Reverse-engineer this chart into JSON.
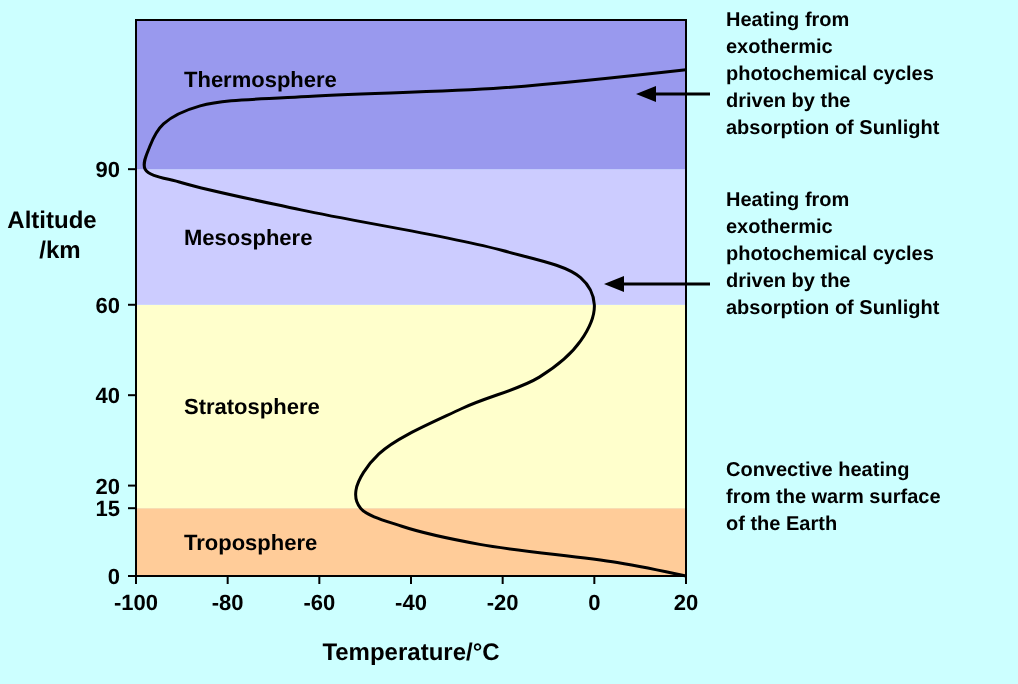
{
  "chart_data": {
    "type": "line",
    "xlabel": "Temperature/°C",
    "ylabel": "Altitude /km",
    "x": [
      20,
      5,
      -25,
      -42,
      -51,
      -52,
      -47,
      -29,
      -12,
      -3,
      0,
      -3,
      -20,
      -64,
      -90,
      -98,
      -97,
      -94,
      -86,
      -64,
      -20,
      20
    ],
    "series": [
      {
        "color": "#000000",
        "values": [
          0,
          3,
          7,
          11,
          15,
          19,
          27,
          37,
          44,
          52,
          60,
          66,
          72,
          81,
          87,
          90,
          95,
          100,
          104,
          106,
          108,
          112
        ]
      }
    ],
    "xlim": [
      -100,
      20
    ],
    "ylim": [
      0,
      123
    ],
    "xticks": [
      -100,
      -80,
      -60,
      -40,
      -20,
      0,
      20
    ],
    "yticks": [
      0,
      15,
      20,
      40,
      60,
      90
    ],
    "bands": [
      {
        "axis": "y",
        "from": 0,
        "to": 15,
        "label": "Troposphere",
        "color": "#ffcc99"
      },
      {
        "axis": "y",
        "from": 15,
        "to": 60,
        "label": "Stratosphere",
        "color": "#ffffcc"
      },
      {
        "axis": "y",
        "from": 60,
        "to": 90,
        "label": "Mesosphere",
        "color": "#ccccff"
      },
      {
        "axis": "y",
        "from": 90,
        "to": 123,
        "label": "Thermosphere",
        "color": "#9999ee"
      }
    ],
    "annotations": [
      "Heating from\nexothermic\nphotochemical cycles\ndriven by the\nabsorption of Sunlight",
      "Heating from\nexothermic\nphotochemical cycles\ndriven by the\nabsorption of Sunlight",
      "Convective heating\nfrom the warm surface\nof the Earth"
    ]
  }
}
